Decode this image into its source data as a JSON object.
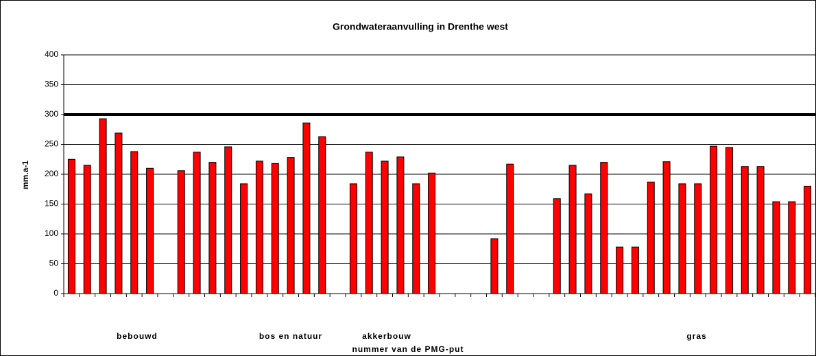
{
  "chart_data": {
    "type": "bar",
    "title": "Grondwateraanvulling in Drenthe west",
    "y_label": "mm.a-1",
    "x_label": "nummer van de PMG-put",
    "group_labels": [
      "bebouwd",
      "bos en natuur",
      "akkerbouw",
      "gras"
    ],
    "categories": [
      null,
      null,
      null,
      null,
      null,
      null,
      null,
      null,
      null,
      null,
      null,
      null,
      null,
      null,
      null,
      null,
      null,
      null,
      null,
      null,
      null,
      null,
      null,
      null,
      null,
      null,
      null,
      null,
      null,
      null,
      null,
      null,
      null,
      null,
      null,
      null,
      null,
      null,
      null,
      null,
      null,
      null,
      null,
      null,
      null,
      null,
      null,
      null
    ],
    "values": [
      225,
      215,
      293,
      269,
      238,
      210,
      null,
      206,
      237,
      220,
      246,
      184,
      222,
      218,
      228,
      286,
      263,
      null,
      184,
      237,
      222,
      229,
      184,
      202,
      null,
      null,
      null,
      92,
      217,
      null,
      null,
      159,
      215,
      167,
      220,
      78,
      78,
      187,
      221,
      184,
      184,
      247,
      245,
      213,
      213,
      154,
      154,
      180
    ],
    "color": "#ff0000",
    "reference_line": 300,
    "ylim": [
      0,
      400
    ],
    "yticks": [
      0,
      50,
      100,
      150,
      200,
      250,
      300,
      350,
      400
    ],
    "grid": true
  }
}
